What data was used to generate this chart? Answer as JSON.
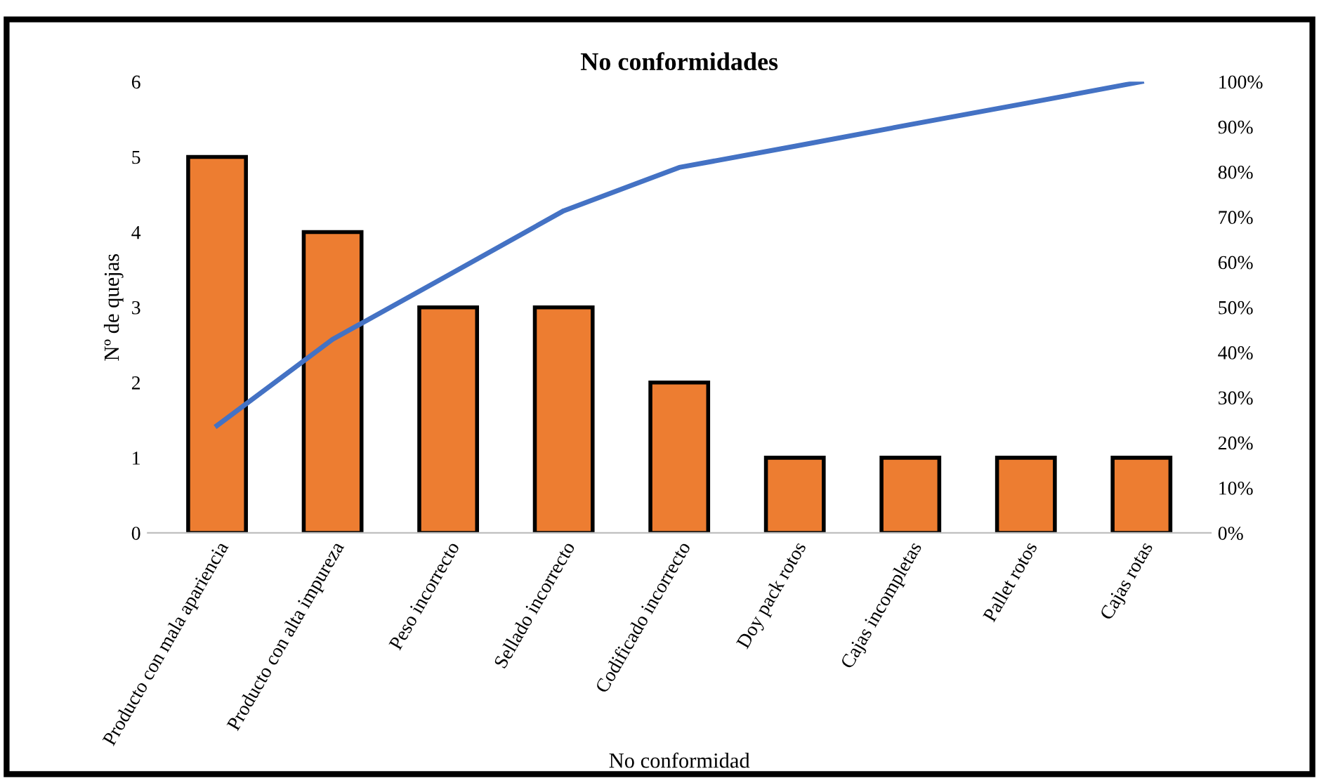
{
  "chart_data": {
    "type": "bar",
    "title": "No conformidades",
    "xlabel": "No conformidad",
    "ylabel": "Nº de quejas",
    "categories": [
      "Producto con mala apariencia",
      "Producto con alta impureza",
      "Peso incorrecto",
      "Sellado incorrecto",
      "Codificado incorrecto",
      "Doy pack rotos",
      "Cajas incompletas",
      "Pallet rotos",
      "Cajas rotas"
    ],
    "series": [
      {
        "color": "#ed7d31",
        "values": [
          5,
          4,
          3,
          3,
          2,
          1,
          1,
          1,
          1
        ]
      },
      {
        "type": "line",
        "axis": "y2",
        "color": "#4472c4",
        "values": [
          23.8,
          42.9,
          57.1,
          71.4,
          81.0,
          85.7,
          90.5,
          95.2,
          100
        ]
      }
    ],
    "ylim": [
      0,
      6
    ],
    "yticks": [
      0,
      1,
      2,
      3,
      4,
      5,
      6
    ],
    "y2lim": [
      0,
      100
    ],
    "y2ticks": [
      {
        "value": 0,
        "label": "0%"
      },
      {
        "value": 10,
        "label": "10%"
      },
      {
        "value": 20,
        "label": "20%"
      },
      {
        "value": 30,
        "label": "30%"
      },
      {
        "value": 40,
        "label": "40%"
      },
      {
        "value": 50,
        "label": "50%"
      },
      {
        "value": 60,
        "label": "60%"
      },
      {
        "value": 70,
        "label": "70%"
      },
      {
        "value": 80,
        "label": "80%"
      },
      {
        "value": 90,
        "label": "90%"
      },
      {
        "value": 100,
        "label": "100%"
      }
    ],
    "grid": false,
    "marker": "none",
    "line_style": "solid"
  }
}
